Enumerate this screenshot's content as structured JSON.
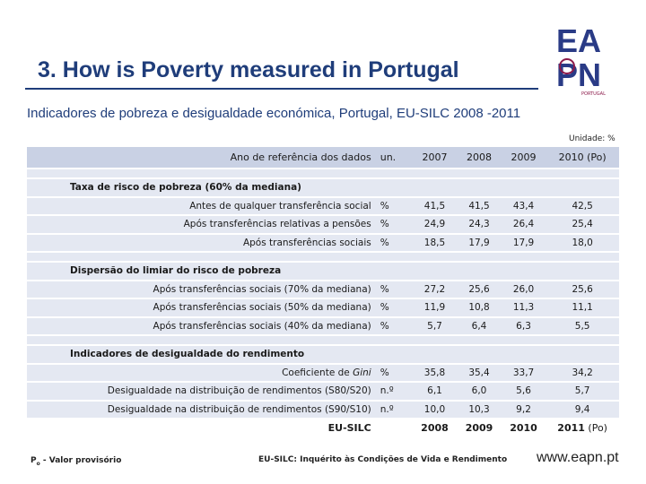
{
  "slide": {
    "title": "3. How is Poverty measured in Portugal",
    "subtitle": "Indicadores de pobreza e desigualdade económica, Portugal, EU-SILC 2008 -2011",
    "unit_note": "Unidade: %",
    "logo": {
      "line1": "EA",
      "line2": "PN",
      "tag": "PORTUGAL",
      "brand_color": "#2a3b86",
      "accent_color": "#8b1a4a"
    }
  },
  "table": {
    "header": {
      "label": "Ano de referência dos dados",
      "unit": "un.",
      "years": [
        "2007",
        "2008",
        "2009",
        "2010 (Po)"
      ]
    },
    "sections": [
      {
        "title": "Taxa de risco de pobreza (60% da mediana)",
        "rows": [
          {
            "label": "Antes de qualquer transferência social",
            "unit": "%",
            "values": [
              "41,5",
              "41,5",
              "43,4",
              "42,5"
            ]
          },
          {
            "label": "Após transferências relativas a pensões",
            "unit": "%",
            "values": [
              "24,9",
              "24,3",
              "26,4",
              "25,4"
            ]
          },
          {
            "label": "Após transferências sociais",
            "unit": "%",
            "values": [
              "18,5",
              "17,9",
              "17,9",
              "18,0"
            ]
          }
        ]
      },
      {
        "title": "Dispersão do limiar do risco de pobreza",
        "rows": [
          {
            "label": "Após transferências sociais (70% da mediana)",
            "unit": "%",
            "values": [
              "27,2",
              "25,6",
              "26,0",
              "25,6"
            ]
          },
          {
            "label": "Após transferências sociais (50% da mediana)",
            "unit": "%",
            "values": [
              "11,9",
              "10,8",
              "11,3",
              "11,1"
            ]
          },
          {
            "label": "Após transferências sociais (40% da mediana)",
            "unit": "%",
            "values": [
              "5,7",
              "6,4",
              "6,3",
              "5,5"
            ]
          }
        ]
      },
      {
        "title": "Indicadores de desigualdade do rendimento",
        "rows": [
          {
            "label": "Coeficiente de Gini",
            "unit": "%",
            "values": [
              "35,8",
              "35,4",
              "33,7",
              "34,2"
            ]
          },
          {
            "label": "Desigualdade na distribuição de rendimentos (S80/S20)",
            "unit": "n.º",
            "values": [
              "6,1",
              "6,0",
              "5,6",
              "5,7"
            ]
          },
          {
            "label": "Desigualdade na distribuição de rendimentos (S90/S10)",
            "unit": "n.º",
            "values": [
              "10,0",
              "10,3",
              "9,2",
              "9,4"
            ]
          }
        ]
      }
    ],
    "footer": {
      "label": "EU-SILC",
      "years": [
        "2008",
        "2009",
        "2010",
        "2011"
      ],
      "last_suffix": "(Po)"
    }
  },
  "notes": {
    "provisional": "Po - Valor provisório",
    "source": "EU-SILC: Inquérito às Condições de Vida e Rendimento",
    "website": "www.eapn.pt"
  }
}
